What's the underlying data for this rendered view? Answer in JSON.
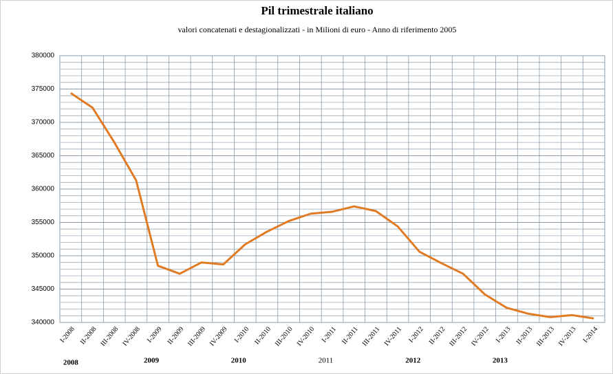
{
  "chart_data": {
    "type": "line",
    "title": "Pil trimestrale italiano",
    "subtitle": "valori concatenati  e destagionalizzati  - in Milioni di euro - Anno di riferimento  2005",
    "categories": [
      "I-2008",
      "II-2008",
      "III-2008",
      "IV-2008",
      "I-2009",
      "II-2009",
      "III-2009",
      "IV-2009",
      "I-2010",
      "II-2010",
      "III-2010",
      "IV-2010",
      "I-2011",
      "II-2011",
      "III-2011",
      "IV-2011",
      "I-2012",
      "II-2012",
      "III-2012",
      "IV-2012",
      "I-2013",
      "II-2013",
      "III-2013",
      "IV-2013",
      "I-2014"
    ],
    "year_groups": [
      "2008",
      "2009",
      "2010",
      "2011",
      "2012",
      "2013"
    ],
    "series": [
      {
        "name": "Pil",
        "color": "#e07b24",
        "values": [
          374400,
          372200,
          367000,
          361300,
          348500,
          347300,
          349000,
          348700,
          351700,
          353600,
          355200,
          356300,
          356600,
          357400,
          356700,
          354400,
          350600,
          348900,
          347300,
          344200,
          342200,
          341300,
          340800,
          341100,
          340600
        ]
      }
    ],
    "ylim": [
      340000,
      380000
    ],
    "yticks": [
      340000,
      345000,
      350000,
      355000,
      360000,
      365000,
      370000,
      375000,
      380000
    ],
    "yminorticks": [
      341000,
      342000,
      343000,
      344000,
      346000,
      347000,
      348000,
      349000,
      351000,
      352000,
      353000,
      354000,
      356000,
      357000,
      358000,
      359000,
      361000,
      362000,
      363000,
      364000,
      366000,
      367000,
      368000,
      369000,
      371000,
      372000,
      373000,
      374000,
      376000,
      377000,
      378000,
      379000
    ],
    "grid": true
  }
}
